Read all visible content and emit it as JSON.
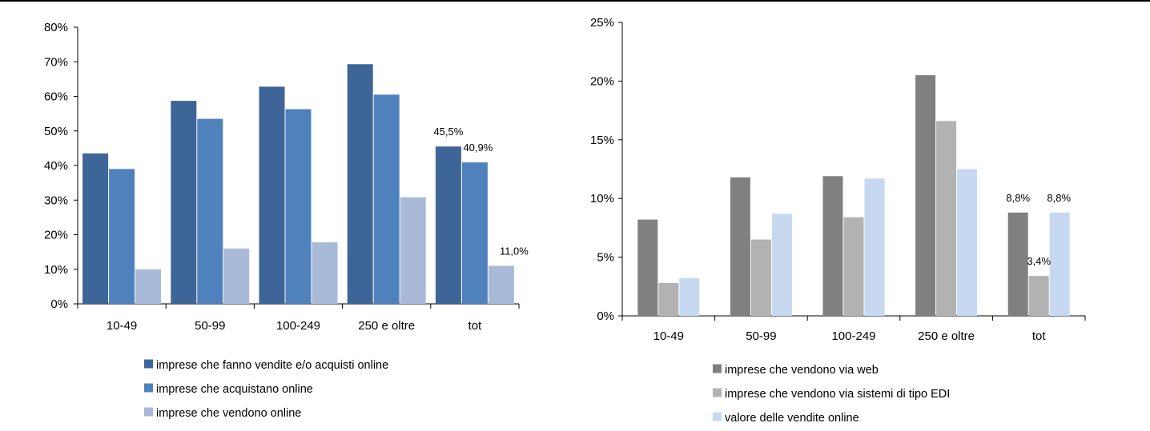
{
  "chart_data": [
    {
      "type": "bar",
      "categories": [
        "10-49",
        "50-99",
        "100-249",
        "250 e oltre",
        "tot"
      ],
      "series": [
        {
          "name": "imprese che fanno vendite e/o acquisti online",
          "color": "#3d6598",
          "values": [
            43.5,
            58.7,
            62.8,
            69.3,
            45.5
          ]
        },
        {
          "name": "imprese che acquistano online",
          "color": "#4f81bd",
          "values": [
            39.0,
            53.5,
            56.3,
            60.5,
            40.9
          ]
        },
        {
          "name": "imprese che vendono online",
          "color": "#a9b9d8",
          "values": [
            10.0,
            16.0,
            17.8,
            30.8,
            11.0
          ]
        }
      ],
      "ylim": [
        0,
        80
      ],
      "yticks": [
        0,
        10,
        20,
        30,
        40,
        50,
        60,
        70,
        80
      ],
      "ytick_labels": [
        "0%",
        "10%",
        "20%",
        "30%",
        "40%",
        "50%",
        "60%",
        "70%",
        "80%"
      ],
      "data_labels": [
        {
          "series": 0,
          "category": 4,
          "text": "45,5%"
        },
        {
          "series": 1,
          "category": 4,
          "text": "40,9%"
        },
        {
          "series": 2,
          "category": 4,
          "text": "11,0%"
        }
      ],
      "legend_position": "bottom",
      "grid": false
    },
    {
      "type": "bar",
      "categories": [
        "10-49",
        "50-99",
        "100-249",
        "250 e oltre",
        "tot"
      ],
      "series": [
        {
          "name": "imprese che vendono via web",
          "color": "#808080",
          "values": [
            8.2,
            11.8,
            11.9,
            20.5,
            8.8
          ]
        },
        {
          "name": "imprese che vendono via sistemi di tipo EDI",
          "color": "#b2b2b2",
          "values": [
            2.8,
            6.5,
            8.4,
            16.6,
            3.4
          ]
        },
        {
          "name": "valore delle vendite online",
          "color": "#c6d9f1",
          "values": [
            3.2,
            8.7,
            11.7,
            12.5,
            8.8
          ]
        }
      ],
      "ylim": [
        0,
        25
      ],
      "yticks": [
        0,
        5,
        10,
        15,
        20,
        25
      ],
      "ytick_labels": [
        "0%",
        "5%",
        "10%",
        "15%",
        "20%",
        "25%"
      ],
      "data_labels": [
        {
          "series": 0,
          "category": 4,
          "text": "8,8%"
        },
        {
          "series": 1,
          "category": 4,
          "text": "3,4%"
        },
        {
          "series": 2,
          "category": 4,
          "text": "8,8%"
        }
      ],
      "legend_position": "bottom",
      "grid": false
    }
  ]
}
